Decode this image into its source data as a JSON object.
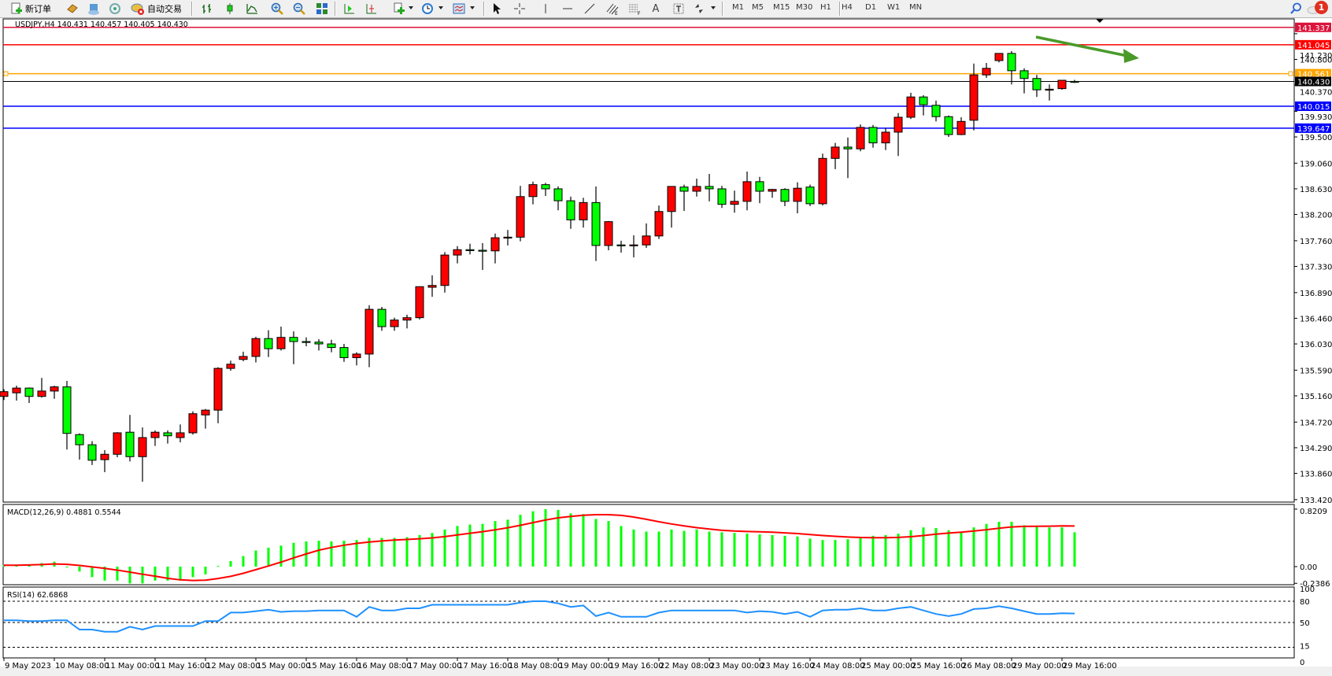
{
  "toolbar": {
    "new_order_label": "新订单",
    "auto_trading_label": "自动交易",
    "timeframes": [
      "M1",
      "M5",
      "M15",
      "M30",
      "H1",
      "H4",
      "D1",
      "W1",
      "MN"
    ],
    "active_timeframe": "H4",
    "icons": [
      "new-order-icon",
      "navigator-book-icon",
      "market-watch-icon",
      "signals-icon",
      "auto-trading-icon",
      "bar-chart-icon",
      "candlestick-icon",
      "line-chart-icon",
      "zoom-in-icon",
      "zoom-out-icon",
      "tile-windows-icon",
      "chart-shift-icon",
      "auto-scroll-icon",
      "indicators-icon",
      "periods-clock-icon",
      "templates-icon",
      "cursor-icon",
      "crosshair-icon",
      "vertical-line-icon",
      "horizontal-line-icon",
      "trendline-icon",
      "equidistant-channel-icon",
      "fibonacci-icon",
      "text-icon",
      "text-label-icon",
      "arrows-icon",
      "search-icon",
      "notifications-icon"
    ],
    "notification_count": "1"
  },
  "chart": {
    "header": "USDJPY,H4  140.431 140.457 140.405 140.430",
    "colors": {
      "bull_candle": "#ff0000",
      "bear_candle": "#00ff00",
      "macd_histogram": "#00ff00",
      "macd_signal": "#ff0000",
      "rsi_line": "#1e90ff",
      "arrow": "#4a9a2a"
    },
    "price_ticks": [
      "141.230",
      "140.800",
      "140.370",
      "139.930",
      "139.500",
      "139.060",
      "138.630",
      "138.200",
      "137.760",
      "137.330",
      "136.890",
      "136.460",
      "136.030",
      "135.590",
      "135.160",
      "134.720",
      "134.290",
      "133.860",
      "133.420"
    ],
    "levels": [
      {
        "price": "141.337",
        "color": "#dc143c"
      },
      {
        "price": "141.045",
        "color": "#ff0000"
      },
      {
        "price": "140.561",
        "color": "#ffa500"
      },
      {
        "price": "140.430",
        "color": "#000000"
      },
      {
        "price": "140.015",
        "color": "#0000ff"
      },
      {
        "price": "139.647",
        "color": "#0000ff"
      }
    ],
    "time_labels": [
      "9 May 2023",
      "10 May 08:00",
      "11 May 00:00",
      "11 May 16:00",
      "12 May 08:00",
      "15 May 00:00",
      "15 May 16:00",
      "16 May 08:00",
      "17 May 00:00",
      "17 May 16:00",
      "18 May 08:00",
      "19 May 00:00",
      "19 May 16:00",
      "22 May 08:00",
      "23 May 00:00",
      "23 May 16:00",
      "24 May 08:00",
      "25 May 00:00",
      "25 May 16:00",
      "26 May 08:00",
      "29 May 00:00",
      "29 May 16:00"
    ],
    "candles_ohlc": [
      [
        135.15,
        135.27,
        135.09,
        135.23
      ],
      [
        135.21,
        135.33,
        135.08,
        135.29
      ],
      [
        135.29,
        135.3,
        135.04,
        135.15
      ],
      [
        135.15,
        135.46,
        135.13,
        135.24
      ],
      [
        135.24,
        135.33,
        135.11,
        135.31
      ],
      [
        135.31,
        135.41,
        134.26,
        134.53
      ],
      [
        134.51,
        134.53,
        134.09,
        134.34
      ],
      [
        134.34,
        134.4,
        134.0,
        134.08
      ],
      [
        134.09,
        134.25,
        133.88,
        134.18
      ],
      [
        134.18,
        134.55,
        134.13,
        134.54
      ],
      [
        134.55,
        134.84,
        134.06,
        134.14
      ],
      [
        134.14,
        134.63,
        133.72,
        134.46
      ],
      [
        134.46,
        134.58,
        134.32,
        134.55
      ],
      [
        134.54,
        134.58,
        134.36,
        134.49
      ],
      [
        134.46,
        134.68,
        134.38,
        134.54
      ],
      [
        134.54,
        134.9,
        134.51,
        134.86
      ],
      [
        134.84,
        134.94,
        134.61,
        134.92
      ],
      [
        134.92,
        135.64,
        134.7,
        135.62
      ],
      [
        135.62,
        135.75,
        135.58,
        135.69
      ],
      [
        135.77,
        135.9,
        135.74,
        135.82
      ],
      [
        135.82,
        136.15,
        135.72,
        136.12
      ],
      [
        136.12,
        136.26,
        135.81,
        135.95
      ],
      [
        135.95,
        136.32,
        135.92,
        136.14
      ],
      [
        136.14,
        136.24,
        135.69,
        136.07
      ],
      [
        136.07,
        136.14,
        135.99,
        136.06
      ],
      [
        136.06,
        136.11,
        135.92,
        136.03
      ],
      [
        136.03,
        136.1,
        135.89,
        135.97
      ],
      [
        135.97,
        136.03,
        135.73,
        135.8
      ],
      [
        135.8,
        135.89,
        135.67,
        135.86
      ],
      [
        135.86,
        136.68,
        135.64,
        136.61
      ],
      [
        136.61,
        136.65,
        136.25,
        136.32
      ],
      [
        136.32,
        136.47,
        136.25,
        136.43
      ],
      [
        136.43,
        136.52,
        136.29,
        136.47
      ],
      [
        136.47,
        136.99,
        136.44,
        136.99
      ],
      [
        136.98,
        137.18,
        136.82,
        137.01
      ],
      [
        137.01,
        137.57,
        136.89,
        137.52
      ],
      [
        137.52,
        137.67,
        137.38,
        137.61
      ],
      [
        137.61,
        137.71,
        137.53,
        137.6
      ],
      [
        137.6,
        137.72,
        137.27,
        137.59
      ],
      [
        137.59,
        137.88,
        137.38,
        137.81
      ],
      [
        137.81,
        137.94,
        137.68,
        137.82
      ],
      [
        137.82,
        138.68,
        137.75,
        138.5
      ],
      [
        138.5,
        138.75,
        138.37,
        138.7
      ],
      [
        138.7,
        138.73,
        138.51,
        138.63
      ],
      [
        138.63,
        138.67,
        138.27,
        138.43
      ],
      [
        138.43,
        138.5,
        137.96,
        138.11
      ],
      [
        138.11,
        138.48,
        137.98,
        138.4
      ],
      [
        138.4,
        138.67,
        137.42,
        137.68
      ],
      [
        137.68,
        138.09,
        137.6,
        138.08
      ],
      [
        137.69,
        137.76,
        137.56,
        137.68
      ],
      [
        137.69,
        137.85,
        137.48,
        137.69
      ],
      [
        137.69,
        138.05,
        137.64,
        137.84
      ],
      [
        137.84,
        138.35,
        137.79,
        138.25
      ],
      [
        138.25,
        138.67,
        137.98,
        138.67
      ],
      [
        138.66,
        138.7,
        138.26,
        138.59
      ],
      [
        138.59,
        138.8,
        138.5,
        138.67
      ],
      [
        138.67,
        138.88,
        138.42,
        138.63
      ],
      [
        138.63,
        138.68,
        138.31,
        138.37
      ],
      [
        138.37,
        138.6,
        138.23,
        138.42
      ],
      [
        138.42,
        138.92,
        138.27,
        138.75
      ],
      [
        138.75,
        138.83,
        138.39,
        138.59
      ],
      [
        138.59,
        138.63,
        138.48,
        138.62
      ],
      [
        138.62,
        138.64,
        138.34,
        138.42
      ],
      [
        138.42,
        138.74,
        138.22,
        138.64
      ],
      [
        138.66,
        138.7,
        138.34,
        138.38
      ],
      [
        138.38,
        139.22,
        138.35,
        139.14
      ],
      [
        139.14,
        139.4,
        138.96,
        139.33
      ],
      [
        139.33,
        139.49,
        138.81,
        139.3
      ],
      [
        139.3,
        139.71,
        139.26,
        139.66
      ],
      [
        139.66,
        139.7,
        139.32,
        139.4
      ],
      [
        139.4,
        139.65,
        139.28,
        139.58
      ],
      [
        139.58,
        139.9,
        139.18,
        139.83
      ],
      [
        139.83,
        140.24,
        139.8,
        140.17
      ],
      [
        140.17,
        140.2,
        139.86,
        140.04
      ],
      [
        140.03,
        140.11,
        139.76,
        139.84
      ],
      [
        139.84,
        139.86,
        139.5,
        139.54
      ],
      [
        139.54,
        139.83,
        139.53,
        139.76
      ],
      [
        139.78,
        140.73,
        139.61,
        140.54
      ],
      [
        140.54,
        140.74,
        140.49,
        140.65
      ],
      [
        140.78,
        140.9,
        140.75,
        140.9
      ],
      [
        140.9,
        140.94,
        140.38,
        140.61
      ],
      [
        140.61,
        140.65,
        140.23,
        140.48
      ],
      [
        140.48,
        140.54,
        140.17,
        140.29
      ],
      [
        140.29,
        140.38,
        140.11,
        140.3
      ],
      [
        140.31,
        140.45,
        140.29,
        140.45
      ],
      [
        140.431,
        140.457,
        140.405,
        140.43
      ]
    ]
  },
  "macd": {
    "label": "MACD(12,26,9) 0.4881 0.5544",
    "ticks": [
      "0.8209",
      "0.00",
      "-0.2386"
    ],
    "histogram": [
      0.02,
      0.02,
      0.03,
      0.05,
      0.07,
      0.0,
      -0.07,
      -0.15,
      -0.2,
      -0.2,
      -0.24,
      -0.24,
      -0.2,
      -0.2,
      -0.2,
      -0.15,
      -0.11,
      0.01,
      0.08,
      0.15,
      0.23,
      0.27,
      0.3,
      0.34,
      0.36,
      0.37,
      0.36,
      0.37,
      0.38,
      0.41,
      0.41,
      0.41,
      0.42,
      0.45,
      0.48,
      0.53,
      0.58,
      0.6,
      0.61,
      0.65,
      0.67,
      0.74,
      0.79,
      0.82,
      0.81,
      0.76,
      0.75,
      0.68,
      0.65,
      0.58,
      0.53,
      0.5,
      0.5,
      0.53,
      0.51,
      0.53,
      0.5,
      0.49,
      0.48,
      0.47,
      0.46,
      0.45,
      0.44,
      0.43,
      0.4,
      0.38,
      0.38,
      0.39,
      0.41,
      0.44,
      0.45,
      0.47,
      0.52,
      0.56,
      0.55,
      0.52,
      0.5,
      0.56,
      0.61,
      0.64,
      0.64,
      0.59,
      0.57,
      0.56,
      0.56,
      0.49
    ],
    "signal_last": 0.5544
  },
  "rsi": {
    "label": "RSI(14) 62.6868",
    "ticks": [
      "100",
      "80",
      "50",
      "15",
      "0"
    ],
    "levels": [
      80,
      50,
      15
    ],
    "values": [
      53,
      53,
      52,
      52,
      53,
      53,
      40,
      40,
      37,
      37,
      44,
      40,
      45,
      45,
      45,
      45,
      52,
      52,
      64,
      64,
      66,
      68,
      65,
      66,
      66,
      67,
      67,
      67,
      58,
      72,
      67,
      67,
      70,
      70,
      75,
      75,
      75,
      75,
      75,
      75,
      75,
      78,
      80,
      80,
      77,
      72,
      74,
      59,
      64,
      58,
      58,
      58,
      64,
      67,
      67,
      67,
      67,
      67,
      67,
      64,
      66,
      65,
      62,
      65,
      58,
      67,
      68,
      68,
      70,
      67,
      67,
      70,
      72,
      67,
      62,
      59,
      62,
      69,
      70,
      73,
      70,
      66,
      62,
      62,
      63,
      62.69
    ]
  }
}
